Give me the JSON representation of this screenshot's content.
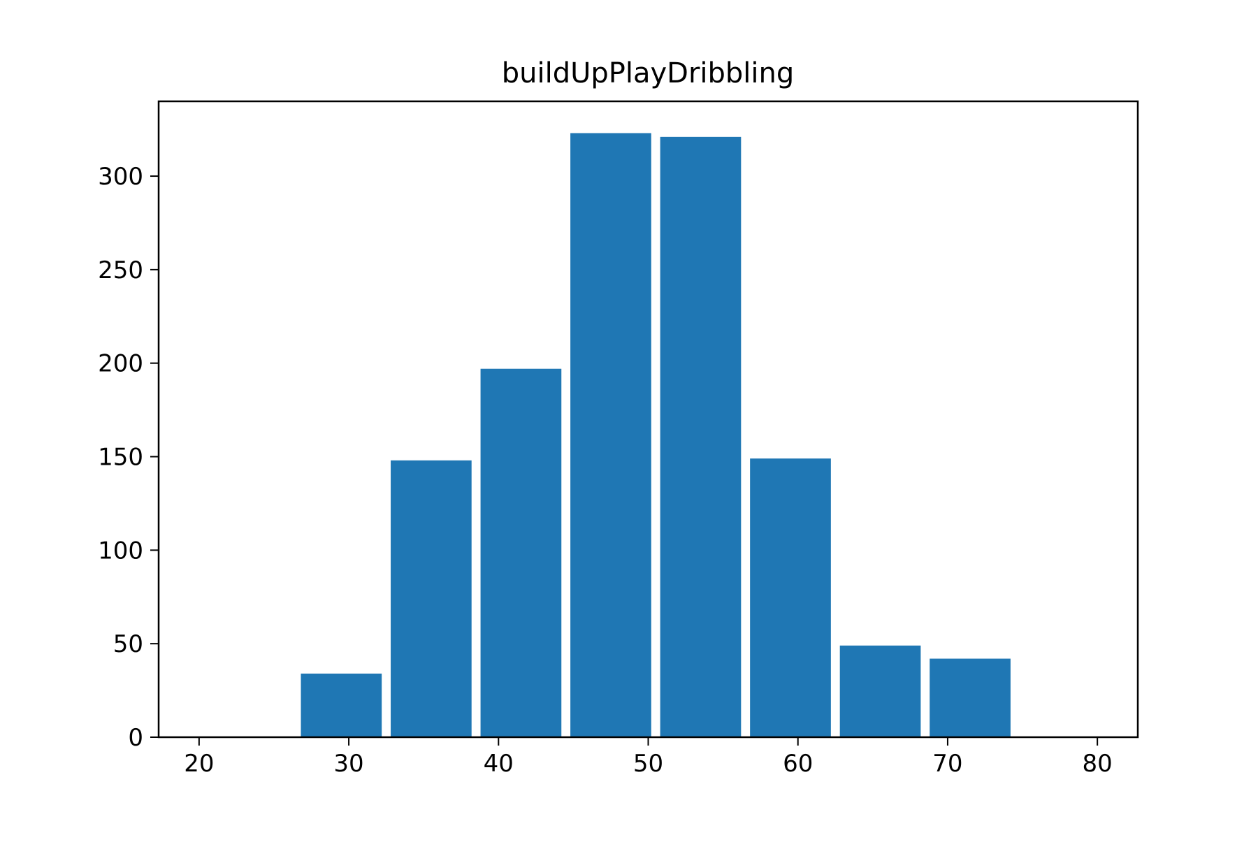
{
  "chart_data": {
    "type": "bar",
    "title": "buildUpPlayDribbling",
    "xlabel": "",
    "ylabel": "",
    "bins": [
      {
        "start": 26.5,
        "end": 32.5,
        "value": 34
      },
      {
        "start": 32.5,
        "end": 38.5,
        "value": 148
      },
      {
        "start": 38.5,
        "end": 44.5,
        "value": 197
      },
      {
        "start": 44.5,
        "end": 50.5,
        "value": 323
      },
      {
        "start": 50.5,
        "end": 56.5,
        "value": 321
      },
      {
        "start": 56.5,
        "end": 62.5,
        "value": 149
      },
      {
        "start": 62.5,
        "end": 68.5,
        "value": 49
      },
      {
        "start": 68.5,
        "end": 74.5,
        "value": 42
      }
    ],
    "xlim": [
      17.3,
      82.7
    ],
    "ylim": [
      0,
      340
    ],
    "xticks": [
      20,
      30,
      40,
      50,
      60,
      70,
      80
    ],
    "xtick_labels": [
      "20",
      "30",
      "40",
      "50",
      "60",
      "70",
      "80"
    ],
    "yticks": [
      0,
      50,
      100,
      150,
      200,
      250,
      300
    ],
    "ytick_labels": [
      "0",
      "50",
      "100",
      "150",
      "200",
      "250",
      "300"
    ],
    "bar_color": "#1f77b4",
    "grid": false,
    "legend": "none"
  }
}
